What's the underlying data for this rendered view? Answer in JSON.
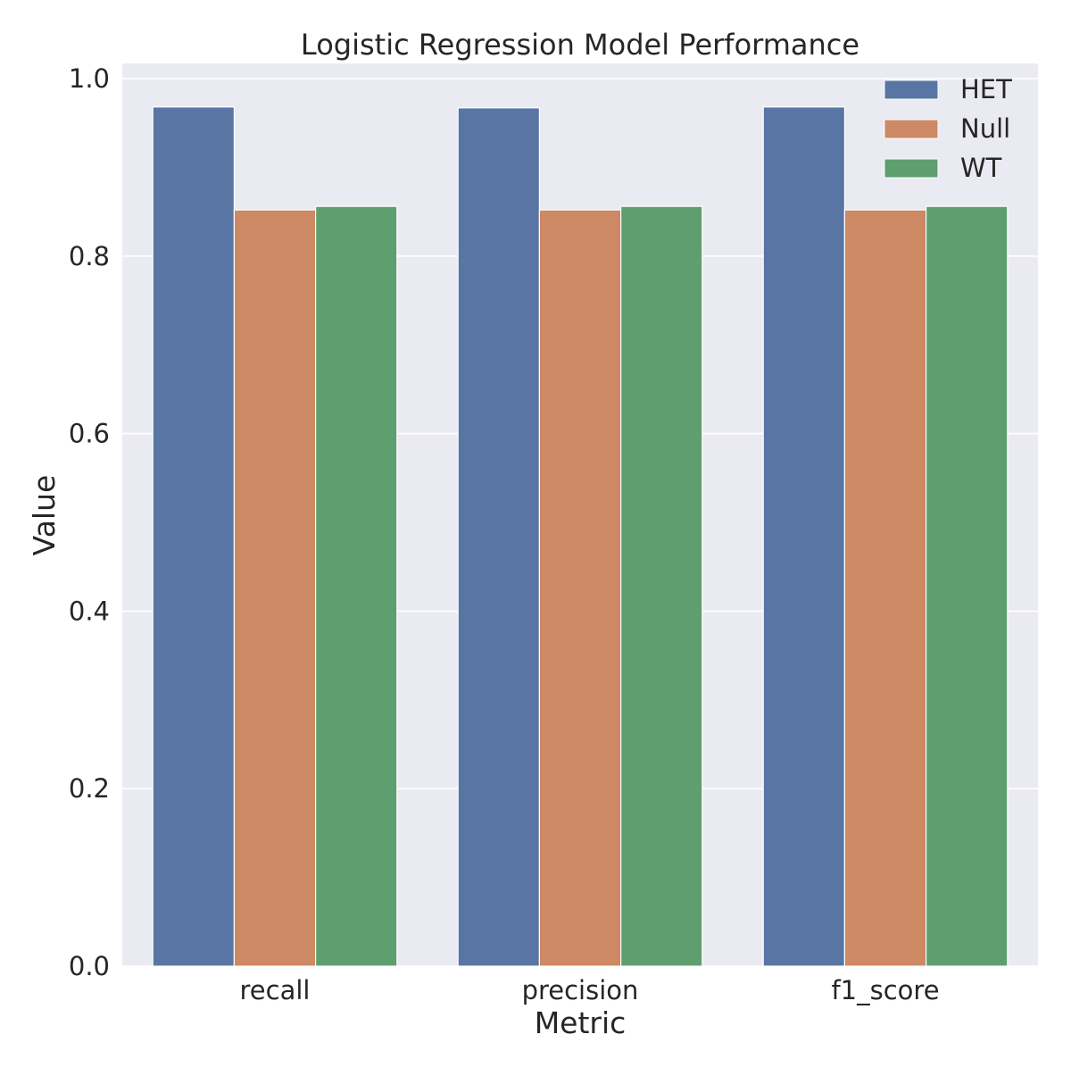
{
  "chart_data": {
    "type": "bar",
    "title": "Logistic Regression Model Performance",
    "xlabel": "Metric",
    "ylabel": "Value",
    "categories": [
      "recall",
      "precision",
      "f1_score"
    ],
    "series": [
      {
        "name": "HET",
        "color": "#5875a4",
        "values": [
          0.968,
          0.967,
          0.968
        ]
      },
      {
        "name": "Null",
        "color": "#cc8963",
        "values": [
          0.852,
          0.852,
          0.852
        ]
      },
      {
        "name": "WT",
        "color": "#5f9e6e",
        "values": [
          0.856,
          0.856,
          0.856
        ]
      }
    ],
    "yticks": [
      "0.0",
      "0.2",
      "0.4",
      "0.6",
      "0.8",
      "1.0"
    ],
    "ylim": [
      0,
      1.0
    ],
    "grid": true,
    "legend_position": "top-right",
    "plot_background": "#eaeaf2"
  }
}
